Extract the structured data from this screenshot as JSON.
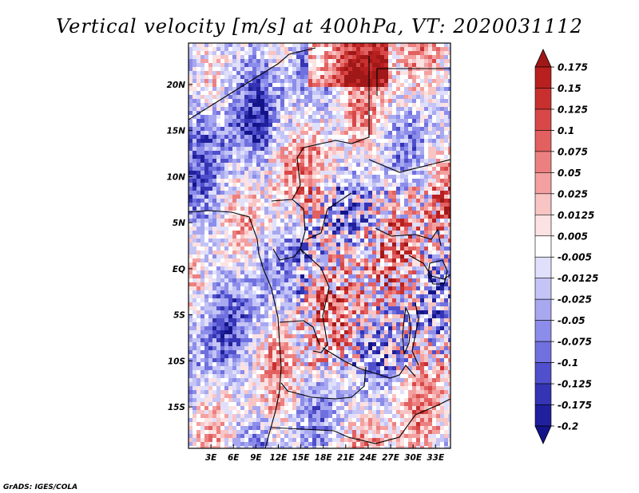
{
  "title": "Vertical velocity [m/s] at 400hPa, VT: 2020031112",
  "credit": "GrADS: IGES/COLA",
  "map": {
    "lon_range": [
      0,
      35
    ],
    "lat_range": [
      -19.5,
      24.5
    ],
    "x_tick_labels": [
      "3E",
      "6E",
      "9E",
      "12E",
      "15E",
      "18E",
      "21E",
      "24E",
      "27E",
      "30E",
      "33E"
    ],
    "x_tick_values": [
      3,
      6,
      9,
      12,
      15,
      18,
      21,
      24,
      27,
      30,
      33
    ],
    "y_tick_labels": [
      "20N",
      "15N",
      "10N",
      "5N",
      "EQ",
      "5S",
      "10S",
      "15S"
    ],
    "y_tick_values": [
      20,
      15,
      10,
      5,
      0,
      -5,
      -10,
      -15
    ]
  },
  "colorbar": {
    "labels": [
      "0.175",
      "0.15",
      "0.125",
      "0.1",
      "0.075",
      "0.05",
      "0.025",
      "0.0125",
      "0.005",
      "-0.005",
      "-0.0125",
      "-0.025",
      "-0.05",
      "-0.075",
      "-0.1",
      "-0.125",
      "-0.175",
      "-0.2"
    ],
    "colors": [
      "#a01818",
      "#b82020",
      "#c83030",
      "#d84848",
      "#e26060",
      "#ec8080",
      "#f4a0a0",
      "#f8c4c4",
      "#fce2e2",
      "#ffffff",
      "#e0e0fc",
      "#c4c4f6",
      "#a8a8f0",
      "#8c8cea",
      "#7070de",
      "#5050cc",
      "#3434b4",
      "#20209c",
      "#14148a"
    ]
  },
  "colors": {
    "positive_max": "#a01818",
    "negative_max": "#14148a",
    "neutral": "#ffffff"
  }
}
